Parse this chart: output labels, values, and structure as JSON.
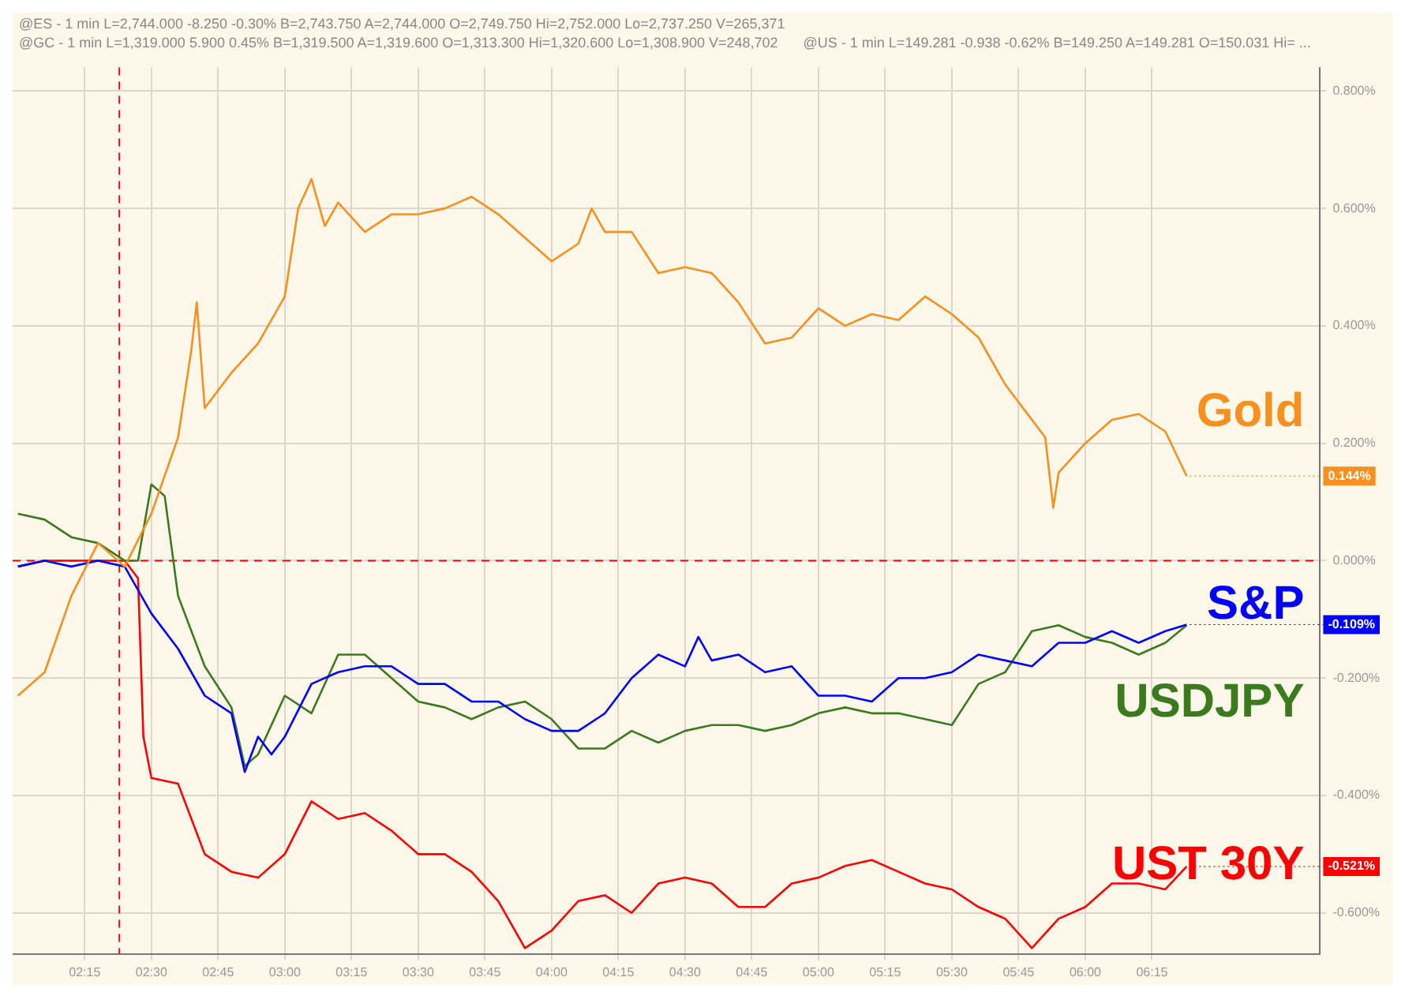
{
  "chart_data": {
    "type": "line",
    "xlim": [
      1.98,
      6.88
    ],
    "ylim": [
      -0.67,
      0.84
    ],
    "xticks": [
      {
        "value": 2.25,
        "label": "02:15"
      },
      {
        "value": 2.5,
        "label": "02:30"
      },
      {
        "value": 2.75,
        "label": "02:45"
      },
      {
        "value": 3,
        "label": "03:00"
      },
      {
        "value": 3.25,
        "label": "03:15"
      },
      {
        "value": 3.5,
        "label": "03:30"
      },
      {
        "value": 3.75,
        "label": "03:45"
      },
      {
        "value": 4,
        "label": "04:00"
      },
      {
        "value": 4.25,
        "label": "04:15"
      },
      {
        "value": 4.5,
        "label": "04:30"
      },
      {
        "value": 4.75,
        "label": "04:45"
      },
      {
        "value": 5,
        "label": "05:00"
      },
      {
        "value": 5.25,
        "label": "05:15"
      },
      {
        "value": 5.5,
        "label": "05:30"
      },
      {
        "value": 5.75,
        "label": "05:45"
      },
      {
        "value": 6,
        "label": "06:00"
      },
      {
        "value": 6.25,
        "label": "06:15"
      }
    ],
    "yticks": [
      {
        "value": -0.6,
        "label": "-0.600%"
      },
      {
        "value": -0.4,
        "label": "-0.400%"
      },
      {
        "value": -0.2,
        "label": "-0.200%"
      },
      {
        "value": 0,
        "label": "0.000%"
      },
      {
        "value": 0.2,
        "label": "0.200%"
      },
      {
        "value": 0.4,
        "label": "0.400%"
      },
      {
        "value": 0.6,
        "label": "0.600%"
      },
      {
        "value": 0.8,
        "label": "0.800%"
      }
    ],
    "grid": true,
    "legend": "right",
    "marker": "none",
    "line_style": "solid",
    "series": [
      {
        "name": "Gold",
        "color": "#f7901e",
        "x": [
          2.0,
          2.1,
          2.2,
          2.3,
          2.4,
          2.5,
          2.6,
          2.65,
          2.67,
          2.7,
          2.8,
          2.9,
          3.0,
          3.05,
          3.1,
          3.15,
          3.2,
          3.3,
          3.4,
          3.5,
          3.6,
          3.7,
          3.8,
          3.9,
          4.0,
          4.1,
          4.15,
          4.2,
          4.3,
          4.4,
          4.5,
          4.6,
          4.7,
          4.8,
          4.9,
          5.0,
          5.1,
          5.2,
          5.3,
          5.4,
          5.5,
          5.6,
          5.7,
          5.8,
          5.85,
          5.88,
          5.9,
          6.0,
          6.1,
          6.2,
          6.3,
          6.38
        ],
        "values": [
          -0.23,
          -0.19,
          -0.06,
          0.03,
          -0.01,
          0.08,
          0.21,
          0.36,
          0.44,
          0.26,
          0.32,
          0.37,
          0.45,
          0.6,
          0.65,
          0.57,
          0.61,
          0.56,
          0.59,
          0.59,
          0.6,
          0.62,
          0.59,
          0.55,
          0.51,
          0.54,
          0.6,
          0.56,
          0.56,
          0.49,
          0.5,
          0.49,
          0.44,
          0.37,
          0.38,
          0.43,
          0.4,
          0.42,
          0.41,
          0.45,
          0.42,
          0.38,
          0.3,
          0.24,
          0.21,
          0.09,
          0.15,
          0.2,
          0.24,
          0.25,
          0.22,
          0.144
        ],
        "value_labels": [
          null,
          null,
          null,
          null,
          null,
          null,
          null,
          null,
          null,
          null,
          null,
          null,
          null,
          null,
          null,
          null,
          null,
          null,
          null,
          null,
          null,
          null,
          null,
          null,
          null,
          null,
          null,
          null,
          null,
          null,
          null,
          null,
          null,
          null,
          null,
          null,
          null,
          null,
          null,
          null,
          null,
          null,
          null,
          null,
          null,
          null,
          null,
          null,
          null,
          null,
          null,
          "0.144%"
        ]
      },
      {
        "name": "S&P",
        "color": "#0000ff",
        "x": [
          2.0,
          2.1,
          2.2,
          2.3,
          2.4,
          2.5,
          2.6,
          2.7,
          2.8,
          2.85,
          2.9,
          2.95,
          3.0,
          3.1,
          3.2,
          3.3,
          3.4,
          3.5,
          3.6,
          3.7,
          3.8,
          3.9,
          4.0,
          4.1,
          4.2,
          4.3,
          4.4,
          4.5,
          4.55,
          4.6,
          4.7,
          4.8,
          4.9,
          5.0,
          5.1,
          5.2,
          5.3,
          5.4,
          5.5,
          5.6,
          5.7,
          5.8,
          5.9,
          6.0,
          6.1,
          6.2,
          6.3,
          6.38
        ],
        "values": [
          -0.01,
          0.0,
          -0.01,
          0.0,
          -0.01,
          -0.09,
          -0.15,
          -0.23,
          -0.26,
          -0.36,
          -0.3,
          -0.33,
          -0.3,
          -0.21,
          -0.19,
          -0.18,
          -0.18,
          -0.21,
          -0.21,
          -0.24,
          -0.24,
          -0.27,
          -0.29,
          -0.29,
          -0.26,
          -0.2,
          -0.16,
          -0.18,
          -0.13,
          -0.17,
          -0.16,
          -0.19,
          -0.18,
          -0.23,
          -0.23,
          -0.24,
          -0.2,
          -0.2,
          -0.19,
          -0.16,
          -0.17,
          -0.18,
          -0.14,
          -0.14,
          -0.12,
          -0.14,
          -0.12,
          -0.109
        ],
        "value_labels": [
          null,
          null,
          null,
          null,
          null,
          null,
          null,
          null,
          null,
          null,
          null,
          null,
          null,
          null,
          null,
          null,
          null,
          null,
          null,
          null,
          null,
          null,
          null,
          null,
          null,
          null,
          null,
          null,
          null,
          null,
          null,
          null,
          null,
          null,
          null,
          null,
          null,
          null,
          null,
          null,
          null,
          null,
          null,
          null,
          null,
          null,
          null,
          "-0.109%"
        ]
      },
      {
        "name": "USDJPY",
        "color": "#3c7a1e",
        "x": [
          2.0,
          2.1,
          2.2,
          2.3,
          2.4,
          2.45,
          2.5,
          2.55,
          2.6,
          2.7,
          2.8,
          2.85,
          2.9,
          3.0,
          3.1,
          3.2,
          3.3,
          3.4,
          3.5,
          3.6,
          3.7,
          3.8,
          3.9,
          4.0,
          4.1,
          4.2,
          4.3,
          4.4,
          4.5,
          4.6,
          4.7,
          4.8,
          4.9,
          5.0,
          5.1,
          5.2,
          5.3,
          5.4,
          5.5,
          5.6,
          5.7,
          5.8,
          5.9,
          6.0,
          6.1,
          6.2,
          6.3,
          6.38
        ],
        "values": [
          0.08,
          0.07,
          0.04,
          0.03,
          0.0,
          0.0,
          0.13,
          0.11,
          -0.06,
          -0.18,
          -0.25,
          -0.35,
          -0.33,
          -0.23,
          -0.26,
          -0.16,
          -0.16,
          -0.2,
          -0.24,
          -0.25,
          -0.27,
          -0.25,
          -0.24,
          -0.27,
          -0.32,
          -0.32,
          -0.29,
          -0.31,
          -0.29,
          -0.28,
          -0.28,
          -0.29,
          -0.28,
          -0.26,
          -0.25,
          -0.26,
          -0.26,
          -0.27,
          -0.28,
          -0.21,
          -0.19,
          -0.12,
          -0.11,
          -0.13,
          -0.14,
          -0.16,
          -0.14,
          -0.11
        ]
      },
      {
        "name": "UST 30Y",
        "color": "#ff0000",
        "x": [
          2.0,
          2.1,
          2.2,
          2.3,
          2.4,
          2.45,
          2.47,
          2.5,
          2.6,
          2.7,
          2.8,
          2.9,
          3.0,
          3.1,
          3.2,
          3.3,
          3.4,
          3.5,
          3.6,
          3.7,
          3.8,
          3.9,
          4.0,
          4.1,
          4.2,
          4.3,
          4.4,
          4.5,
          4.6,
          4.7,
          4.8,
          4.9,
          5.0,
          5.1,
          5.2,
          5.3,
          5.4,
          5.5,
          5.6,
          5.7,
          5.8,
          5.9,
          6.0,
          6.1,
          6.2,
          6.3,
          6.38
        ],
        "values": [
          -0.01,
          0.0,
          0.0,
          0.0,
          0.0,
          -0.03,
          -0.3,
          -0.37,
          -0.38,
          -0.5,
          -0.53,
          -0.54,
          -0.5,
          -0.41,
          -0.44,
          -0.43,
          -0.46,
          -0.5,
          -0.5,
          -0.53,
          -0.58,
          -0.66,
          -0.63,
          -0.58,
          -0.57,
          -0.6,
          -0.55,
          -0.54,
          -0.55,
          -0.59,
          -0.59,
          -0.55,
          -0.54,
          -0.52,
          -0.51,
          -0.53,
          -0.55,
          -0.56,
          -0.59,
          -0.61,
          -0.66,
          -0.61,
          -0.59,
          -0.55,
          -0.55,
          -0.56,
          -0.521
        ],
        "value_labels": [
          null,
          null,
          null,
          null,
          null,
          null,
          null,
          null,
          null,
          null,
          null,
          null,
          null,
          null,
          null,
          null,
          null,
          null,
          null,
          null,
          null,
          null,
          null,
          null,
          null,
          null,
          null,
          null,
          null,
          null,
          null,
          null,
          null,
          null,
          null,
          null,
          null,
          null,
          null,
          null,
          null,
          null,
          null,
          null,
          null,
          null,
          "-0.521%"
        ]
      }
    ],
    "ref_lines": [
      {
        "axis": "y",
        "value": 0,
        "color": "#ff0000",
        "line_style": "dashed"
      },
      {
        "axis": "x",
        "value": 2.38,
        "color": "#ff0000",
        "line_style": "dashed"
      }
    ],
    "annotations": [
      "@ES - 1 min L=2,744.000 -8.250 -0.30% B=2,743.750 A=2,744.000 O=2,749.750 Hi=2,752.000 Lo=2,737.250 V=265,371",
      "@GC - 1 min L=1,319.000 5.900 0.45% B=1,319.500 A=1,319.600 O=1,313.300 Hi=1,320.600 Lo=1,308.900 V=248,702",
      "@US - 1 min L=149.281 -0.938 -0.62% B=149.250 A=149.281 O=150.031 Hi= ..."
    ]
  }
}
